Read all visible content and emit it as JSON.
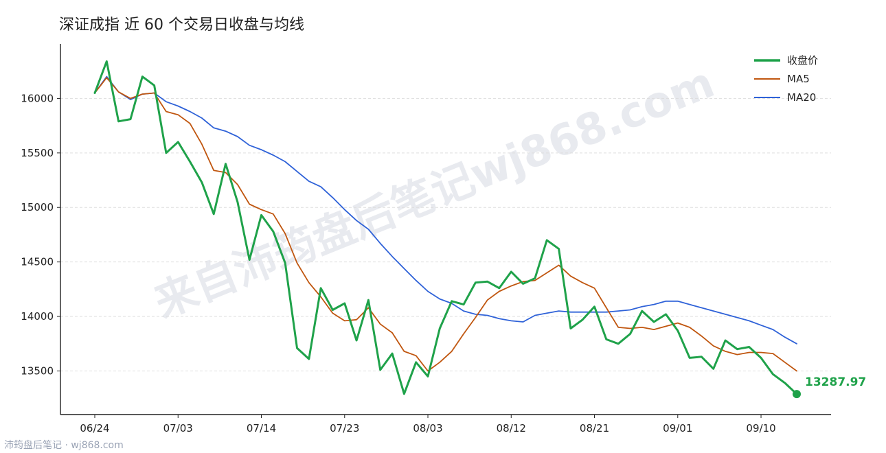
{
  "title": "深证成指 近 60 个交易日收盘与均线",
  "footer": "沛筠盘后笔记 · wj868.com",
  "watermark": "来自沛筠盘后笔记wj868.com",
  "colors": {
    "close": "#1fa24a",
    "ma5": "#c0560f",
    "ma20": "#2f62d8",
    "axis": "#222222",
    "grid": "#dddddd",
    "watermark": "#e8eaef"
  },
  "chart_data": {
    "type": "line",
    "x": [
      "06/24",
      "06/25",
      "06/26",
      "06/27",
      "06/30",
      "07/01",
      "07/02",
      "07/03",
      "07/04",
      "07/07",
      "07/08",
      "07/09",
      "07/10",
      "07/11",
      "07/14",
      "07/15",
      "07/16",
      "07/17",
      "07/18",
      "07/21",
      "07/22",
      "07/23",
      "07/24",
      "07/25",
      "07/28",
      "07/29",
      "07/30",
      "07/31",
      "08/01",
      "08/03",
      "08/04",
      "08/05",
      "08/06",
      "08/07",
      "08/08",
      "08/11",
      "08/12",
      "08/13",
      "08/14",
      "08/15",
      "08/18",
      "08/19",
      "08/20",
      "08/21",
      "08/22",
      "08/25",
      "08/26",
      "08/27",
      "08/28",
      "08/29",
      "09/01",
      "09/02",
      "09/03",
      "09/04",
      "09/05",
      "09/08",
      "09/09",
      "09/10",
      "09/11",
      "09/12"
    ],
    "x_ticks": [
      "06/24",
      "07/03",
      "07/14",
      "07/23",
      "08/03",
      "08/12",
      "08/21",
      "09/01",
      "09/10"
    ],
    "x_tick_index": [
      0,
      7,
      14,
      21,
      28,
      35,
      42,
      49,
      56
    ],
    "ylim": [
      13100,
      16500
    ],
    "y_ticks": [
      13500,
      14000,
      14500,
      15000,
      15500,
      16000
    ],
    "grid": "horizontal dashed",
    "legend_position": "top-right",
    "series": [
      {
        "name": "收盘价",
        "values": [
          16050,
          16340,
          15790,
          15810,
          16200,
          16120,
          15500,
          15600,
          15420,
          15230,
          14940,
          15400,
          15050,
          14520,
          14930,
          14780,
          14490,
          13710,
          13610,
          14260,
          14060,
          14120,
          13780,
          14150,
          13510,
          13660,
          13290,
          13580,
          13450,
          13890,
          14140,
          14110,
          14310,
          14320,
          14260,
          14410,
          14300,
          14350,
          14700,
          14620,
          13890,
          13970,
          14090,
          13790,
          13750,
          13840,
          14050,
          13950,
          14020,
          13870,
          13620,
          13630,
          13520,
          13780,
          13700,
          13720,
          13620,
          13470,
          13390,
          13287.97
        ]
      },
      {
        "name": "MA5",
        "values": [
          16050,
          16190,
          16060,
          16000,
          16040,
          16050,
          15880,
          15850,
          15770,
          15580,
          15340,
          15320,
          15210,
          15030,
          14980,
          14940,
          14760,
          14490,
          14310,
          14180,
          14030,
          13960,
          13970,
          14080,
          13930,
          13850,
          13680,
          13640,
          13500,
          13580,
          13680,
          13840,
          13990,
          14150,
          14230,
          14280,
          14320,
          14330,
          14400,
          14470,
          14370,
          14310,
          14260,
          14080,
          13900,
          13890,
          13900,
          13880,
          13910,
          13940,
          13900,
          13820,
          13730,
          13680,
          13650,
          13670,
          13670,
          13660,
          13580,
          13500
        ]
      },
      {
        "name": "MA20",
        "values": [
          16050,
          16200,
          16060,
          15990,
          16040,
          16050,
          15970,
          15930,
          15880,
          15820,
          15730,
          15700,
          15650,
          15570,
          15530,
          15480,
          15420,
          15330,
          15240,
          15190,
          15090,
          14980,
          14880,
          14800,
          14670,
          14550,
          14440,
          14330,
          14230,
          14160,
          14120,
          14050,
          14020,
          14010,
          13980,
          13960,
          13950,
          14010,
          14030,
          14050,
          14040,
          14040,
          14040,
          14040,
          14050,
          14060,
          14090,
          14110,
          14140,
          14140,
          14110,
          14080,
          14050,
          14020,
          13990,
          13960,
          13920,
          13880,
          13810,
          13750
        ]
      }
    ],
    "last_value_label": "13287.97"
  }
}
